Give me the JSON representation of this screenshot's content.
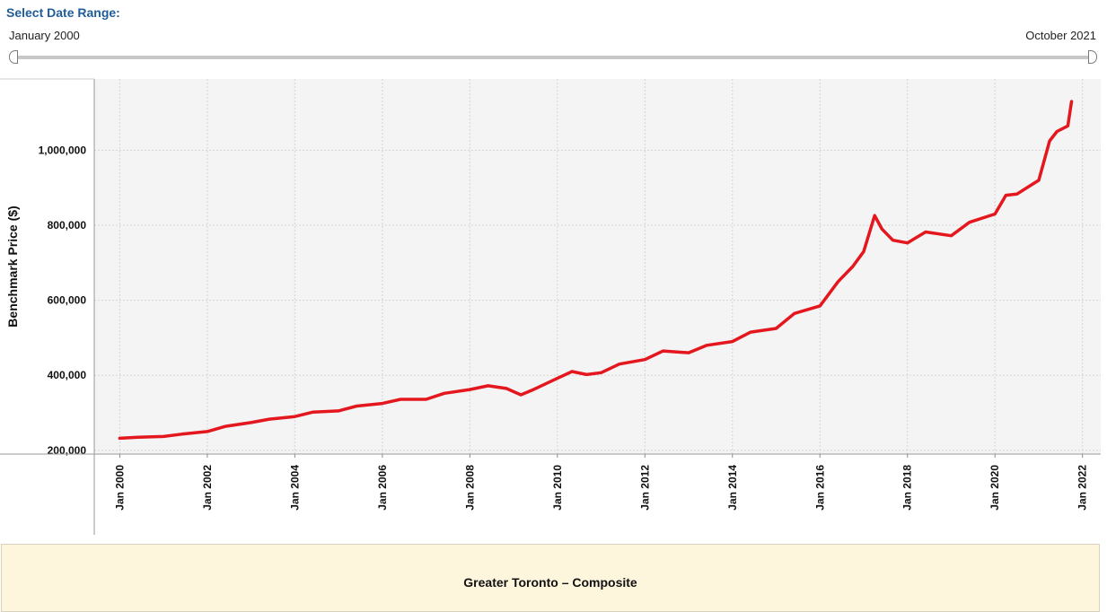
{
  "range_selector": {
    "title": "Select Date Range:",
    "start_label": "January 2000",
    "end_label": "October 2021"
  },
  "footer": {
    "title": "Greater Toronto – Composite"
  },
  "chart_data": {
    "type": "line",
    "title": "",
    "xlabel": "",
    "ylabel": "Benchmark Price ($)",
    "x_range": [
      "1999-06",
      "2022-06"
    ],
    "ylim": [
      190000,
      1190000
    ],
    "grid": true,
    "x_ticks": [
      "Jan 2000",
      "Jan 2002",
      "Jan 2004",
      "Jan 2006",
      "Jan 2008",
      "Jan 2010",
      "Jan 2012",
      "Jan 2014",
      "Jan 2016",
      "Jan 2018",
      "Jan 2020",
      "Jan 2022"
    ],
    "y_ticks": [
      {
        "value": 200000,
        "label": "200,000"
      },
      {
        "value": 400000,
        "label": "400,000"
      },
      {
        "value": 600000,
        "label": "600,000"
      },
      {
        "value": 800000,
        "label": "800,000"
      },
      {
        "value": 1000000,
        "label": "1,000,000"
      }
    ],
    "series": [
      {
        "name": "",
        "color": "#e3171d",
        "points": [
          [
            "2000-01",
            232000
          ],
          [
            "2000-06",
            235000
          ],
          [
            "2001-01",
            237000
          ],
          [
            "2001-06",
            243000
          ],
          [
            "2002-01",
            250000
          ],
          [
            "2002-06",
            264000
          ],
          [
            "2003-01",
            274000
          ],
          [
            "2003-06",
            283000
          ],
          [
            "2004-01",
            290000
          ],
          [
            "2004-06",
            302000
          ],
          [
            "2005-01",
            305000
          ],
          [
            "2005-06",
            318000
          ],
          [
            "2006-01",
            325000
          ],
          [
            "2006-06",
            336000
          ],
          [
            "2007-01",
            336000
          ],
          [
            "2007-06",
            352000
          ],
          [
            "2008-01",
            362000
          ],
          [
            "2008-06",
            372000
          ],
          [
            "2008-11",
            365000
          ],
          [
            "2009-03",
            348000
          ],
          [
            "2009-06",
            360000
          ],
          [
            "2010-01",
            392000
          ],
          [
            "2010-05",
            410000
          ],
          [
            "2010-09",
            402000
          ],
          [
            "2011-01",
            407000
          ],
          [
            "2011-06",
            430000
          ],
          [
            "2012-01",
            442000
          ],
          [
            "2012-06",
            465000
          ],
          [
            "2013-01",
            460000
          ],
          [
            "2013-06",
            480000
          ],
          [
            "2014-01",
            490000
          ],
          [
            "2014-06",
            515000
          ],
          [
            "2015-01",
            525000
          ],
          [
            "2015-06",
            565000
          ],
          [
            "2016-01",
            585000
          ],
          [
            "2016-06",
            650000
          ],
          [
            "2016-10",
            690000
          ],
          [
            "2017-01",
            730000
          ],
          [
            "2017-04",
            826000
          ],
          [
            "2017-06",
            790000
          ],
          [
            "2017-09",
            760000
          ],
          [
            "2018-01",
            753000
          ],
          [
            "2018-06",
            782000
          ],
          [
            "2019-01",
            772000
          ],
          [
            "2019-06",
            808000
          ],
          [
            "2020-01",
            830000
          ],
          [
            "2020-04",
            880000
          ],
          [
            "2020-07",
            883000
          ],
          [
            "2021-01",
            920000
          ],
          [
            "2021-04",
            1025000
          ],
          [
            "2021-06",
            1050000
          ],
          [
            "2021-09",
            1065000
          ],
          [
            "2021-10",
            1130000
          ]
        ]
      }
    ]
  }
}
